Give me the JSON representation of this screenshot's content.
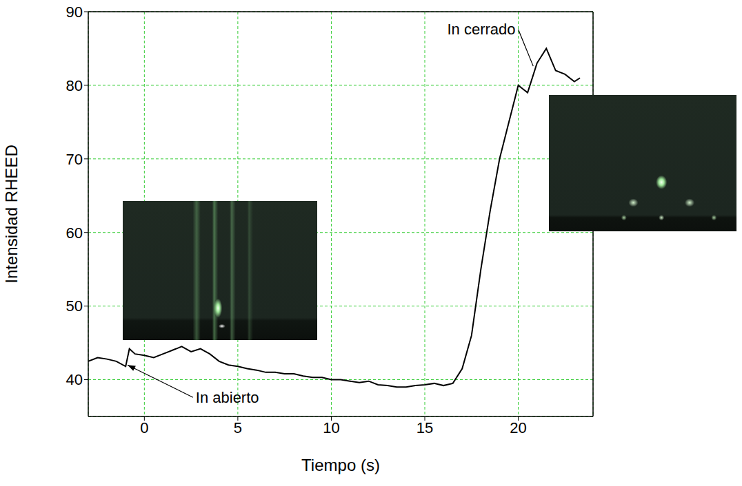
{
  "chart_data": {
    "type": "line",
    "x_label": "Tiempo (s)",
    "y_label": "Intensidad RHEED",
    "xlim": [
      -3,
      24
    ],
    "xticks": [
      0,
      5,
      10,
      15,
      20
    ],
    "ylim": [
      35,
      90
    ],
    "yticks": [
      40,
      50,
      60,
      70,
      80,
      90
    ],
    "grid": true,
    "series": [
      {
        "name": "Intensidad RHEED",
        "color": "#000000",
        "x": [
          -3,
          -2.5,
          -2,
          -1.5,
          -1,
          -0.8,
          -0.5,
          0,
          0.5,
          1,
          1.5,
          2,
          2.5,
          3,
          3.5,
          4,
          4.5,
          5,
          5.5,
          6,
          6.5,
          7,
          7.5,
          8,
          8.5,
          9,
          9.5,
          10,
          10.5,
          11,
          11.5,
          12,
          12.5,
          13,
          13.5,
          14,
          14.5,
          15,
          15.5,
          16,
          16.5,
          17,
          17.5,
          18,
          18.5,
          19,
          19.5,
          20,
          20.5,
          21,
          21.5,
          22,
          22.5,
          23,
          23.3
        ],
        "values": [
          42.5,
          43,
          42.8,
          42.5,
          41.8,
          44.2,
          43.5,
          43.3,
          43,
          43.5,
          44,
          44.5,
          43.8,
          44.2,
          43.5,
          42.5,
          42,
          41.8,
          41.5,
          41.3,
          41,
          41,
          40.8,
          40.8,
          40.5,
          40.3,
          40.3,
          40,
          40,
          39.8,
          39.6,
          39.8,
          39.3,
          39.2,
          39,
          39,
          39.2,
          39.3,
          39.5,
          39.2,
          39.5,
          41.5,
          46,
          55,
          63,
          70,
          75,
          80,
          79,
          83,
          85,
          82,
          81.5,
          80.5,
          81
        ]
      }
    ],
    "annotations": [
      {
        "text": "In abierto",
        "x": -0.9,
        "y": 42,
        "text_x": 2.6,
        "text_y": 37.6,
        "marker": "arrow"
      },
      {
        "text": "In cerrado",
        "x": 20.8,
        "y": 82.6,
        "text_x": 20,
        "text_y": 87.6,
        "marker": "none"
      }
    ]
  }
}
